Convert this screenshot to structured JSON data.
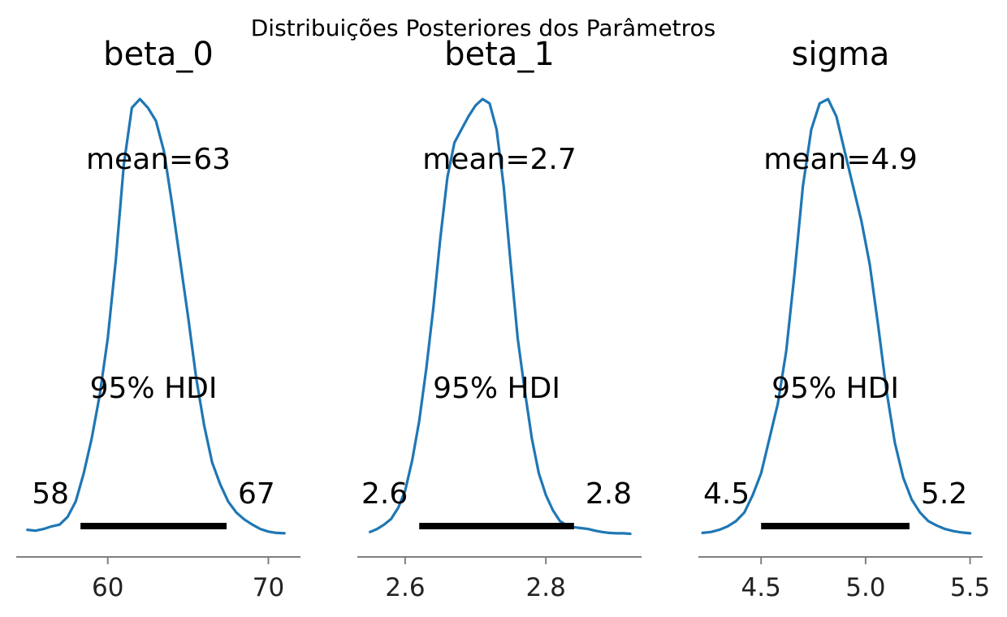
{
  "chart_data": {
    "type": "line",
    "suptitle": "Distribuições Posteriores dos Parâmetros",
    "hdi_label": "95% HDI",
    "panels": [
      {
        "name": "beta_0",
        "mean_label": "mean=63",
        "hdi": [
          58.3,
          67.4
        ],
        "hdi_low_label": "58",
        "hdi_high_label": "67",
        "xlim": [
          54.3,
          72.0
        ],
        "xticks": [
          60,
          70
        ],
        "xtick_labels": [
          "60",
          "70"
        ],
        "density": {
          "x": [
            55.0,
            55.5,
            56.0,
            56.5,
            57.0,
            57.5,
            58.0,
            58.5,
            59.0,
            59.5,
            60.0,
            60.5,
            61.0,
            61.5,
            62.0,
            62.5,
            63.0,
            63.5,
            64.0,
            64.5,
            65.0,
            65.5,
            66.0,
            66.5,
            67.0,
            67.5,
            68.0,
            68.5,
            69.0,
            69.5,
            70.0,
            70.5,
            71.0
          ],
          "y": [
            0.01,
            0.008,
            0.012,
            0.018,
            0.022,
            0.04,
            0.075,
            0.14,
            0.22,
            0.32,
            0.45,
            0.63,
            0.85,
            0.98,
            1.0,
            0.98,
            0.95,
            0.88,
            0.76,
            0.63,
            0.5,
            0.36,
            0.25,
            0.165,
            0.115,
            0.075,
            0.05,
            0.034,
            0.022,
            0.012,
            0.006,
            0.003,
            0.002
          ]
        }
      },
      {
        "name": "beta_1",
        "mean_label": "mean=2.7",
        "hdi": [
          2.62,
          2.84
        ],
        "hdi_low_label": "2.6",
        "hdi_high_label": "2.8",
        "xlim": [
          2.532,
          2.936
        ],
        "xticks": [
          2.6,
          2.8
        ],
        "xtick_labels": [
          "2.6",
          "2.8"
        ],
        "density": {
          "x": [
            2.55,
            2.56,
            2.57,
            2.58,
            2.59,
            2.6,
            2.61,
            2.62,
            2.63,
            2.64,
            2.65,
            2.66,
            2.67,
            2.68,
            2.69,
            2.7,
            2.71,
            2.72,
            2.73,
            2.74,
            2.75,
            2.76,
            2.77,
            2.78,
            2.79,
            2.8,
            2.81,
            2.82,
            2.83,
            2.84,
            2.85,
            2.86,
            2.87,
            2.88,
            2.89,
            2.9,
            2.91,
            2.92
          ],
          "y": [
            0.005,
            0.012,
            0.022,
            0.035,
            0.06,
            0.1,
            0.17,
            0.26,
            0.38,
            0.52,
            0.68,
            0.82,
            0.9,
            0.93,
            0.96,
            0.985,
            1.0,
            0.99,
            0.93,
            0.8,
            0.62,
            0.45,
            0.33,
            0.22,
            0.14,
            0.09,
            0.055,
            0.03,
            0.02,
            0.016,
            0.014,
            0.012,
            0.008,
            0.005,
            0.003,
            0.002,
            0.002,
            0.001
          ]
        }
      },
      {
        "name": "sigma",
        "mean_label": "mean=4.9",
        "hdi": [
          4.5,
          5.21
        ],
        "hdi_low_label": "4.5",
        "hdi_high_label": "5.2",
        "xlim": [
          4.2,
          5.56
        ],
        "xticks": [
          4.5,
          5.0,
          5.5
        ],
        "xtick_labels": [
          "4.5",
          "5.0",
          "5.5"
        ],
        "density": {
          "x": [
            4.22,
            4.26,
            4.3,
            4.34,
            4.38,
            4.42,
            4.46,
            4.5,
            4.54,
            4.58,
            4.62,
            4.66,
            4.7,
            4.74,
            4.78,
            4.82,
            4.86,
            4.9,
            4.94,
            4.98,
            5.02,
            5.06,
            5.1,
            5.14,
            5.18,
            5.22,
            5.26,
            5.3,
            5.34,
            5.38,
            5.42,
            5.46,
            5.5
          ],
          "y": [
            0.003,
            0.005,
            0.01,
            0.018,
            0.03,
            0.05,
            0.09,
            0.14,
            0.22,
            0.3,
            0.42,
            0.6,
            0.8,
            0.93,
            0.99,
            1.0,
            0.96,
            0.88,
            0.8,
            0.72,
            0.62,
            0.48,
            0.33,
            0.21,
            0.13,
            0.08,
            0.05,
            0.03,
            0.02,
            0.012,
            0.007,
            0.004,
            0.002
          ]
        }
      }
    ]
  }
}
